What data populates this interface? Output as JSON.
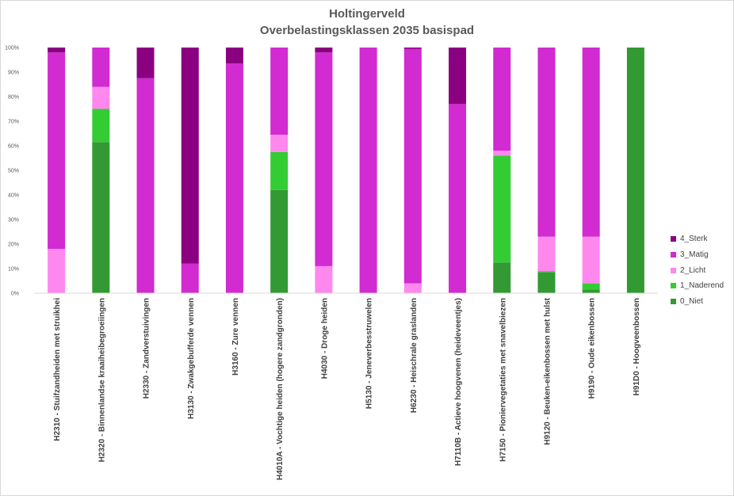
{
  "chart_data": {
    "type": "bar",
    "stacked": true,
    "percent": true,
    "title": "Holtingerveld",
    "subtitle": "Overbelastingsklassen 2035 basispad",
    "ylim": [
      0,
      100
    ],
    "yticks": [
      "0%",
      "10%",
      "20%",
      "30%",
      "40%",
      "50%",
      "60%",
      "70%",
      "80%",
      "90%",
      "100%"
    ],
    "categories": [
      "H2310 - Stuifzandheiden met struikhei",
      "H2320 - Binnenlandse kraaiheibegroeiingen",
      "H2330 - Zandverstuivingen",
      "H3130 - Zwakgebufferde vennen",
      "H3160 - Zure vennen",
      "H4010A - Vochtige heiden (hogere zandgronden)",
      "H4030 - Droge heiden",
      "H5130 - Jeneverbesstruwelen",
      "H6230 - Heischrale graslanden",
      "H7110B - Actieve hoogvenen (heideveentjes)",
      "H7150 - Pioniervegetaties met snavelbiezen",
      "H9120 - Beuken-eikenbossen met hulst",
      "H9190 - Oude eikenbossen",
      "H91D0 - Hoogveenbossen"
    ],
    "series": [
      {
        "name": "0_Niet",
        "color": "#339933",
        "values": [
          0,
          61.5,
          0,
          0,
          0,
          42,
          0,
          0,
          0,
          0,
          12.5,
          8.5,
          1.5,
          100
        ]
      },
      {
        "name": "1_Naderend",
        "color": "#33cc33",
        "values": [
          0,
          13.5,
          0,
          0,
          0,
          15.5,
          0,
          0,
          0,
          0,
          43.5,
          0.5,
          2.5,
          0
        ]
      },
      {
        "name": "2_Licht",
        "color": "#ff88ee",
        "values": [
          18,
          9,
          0,
          0,
          0,
          7,
          11,
          0,
          4,
          0,
          2,
          14,
          19,
          0
        ]
      },
      {
        "name": "3_Matig",
        "color": "#d12bd1",
        "values": [
          80,
          16,
          87.5,
          12,
          93.5,
          35.5,
          87,
          100,
          95.5,
          77,
          42,
          77,
          77,
          0
        ]
      },
      {
        "name": "4_Sterk",
        "color": "#8b0080",
        "values": [
          2,
          0,
          12.5,
          88,
          6.5,
          0,
          2,
          0,
          0.5,
          23,
          0,
          0,
          0,
          0
        ]
      }
    ],
    "legend": [
      "4_Sterk",
      "3_Matig",
      "2_Licht",
      "1_Naderend",
      "0_Niet"
    ],
    "legend_position": "right",
    "grid": false
  }
}
